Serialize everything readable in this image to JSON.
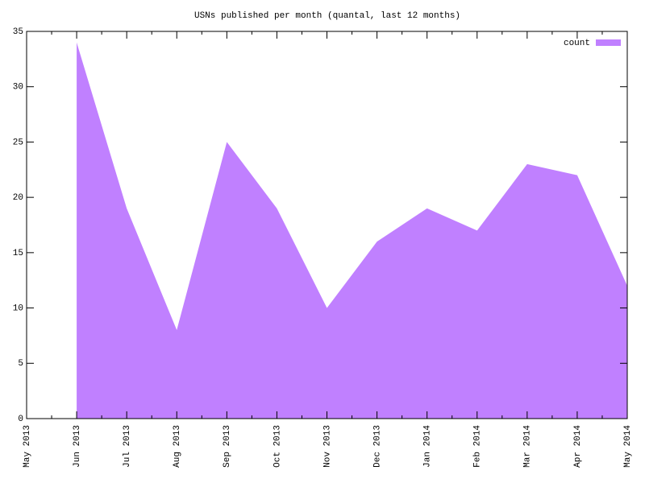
{
  "chart_data": {
    "type": "area",
    "title": "USNs published per month (quantal, last 12 months)",
    "categories": [
      "May 2013",
      "Jun 2013",
      "Jul 2013",
      "Aug 2013",
      "Sep 2013",
      "Oct 2013",
      "Nov 2013",
      "Dec 2013",
      "Jan 2014",
      "Feb 2014",
      "Mar 2014",
      "Apr 2014",
      "May 2014"
    ],
    "series": [
      {
        "name": "count",
        "color": "#c080ff",
        "values": [
          null,
          34,
          19,
          8,
          25,
          19,
          10,
          16,
          19,
          17,
          23,
          22,
          12
        ]
      }
    ],
    "ylim": [
      0,
      35
    ],
    "yticks": [
      0,
      5,
      10,
      15,
      20,
      25,
      30,
      35
    ],
    "legend": "top-right"
  }
}
